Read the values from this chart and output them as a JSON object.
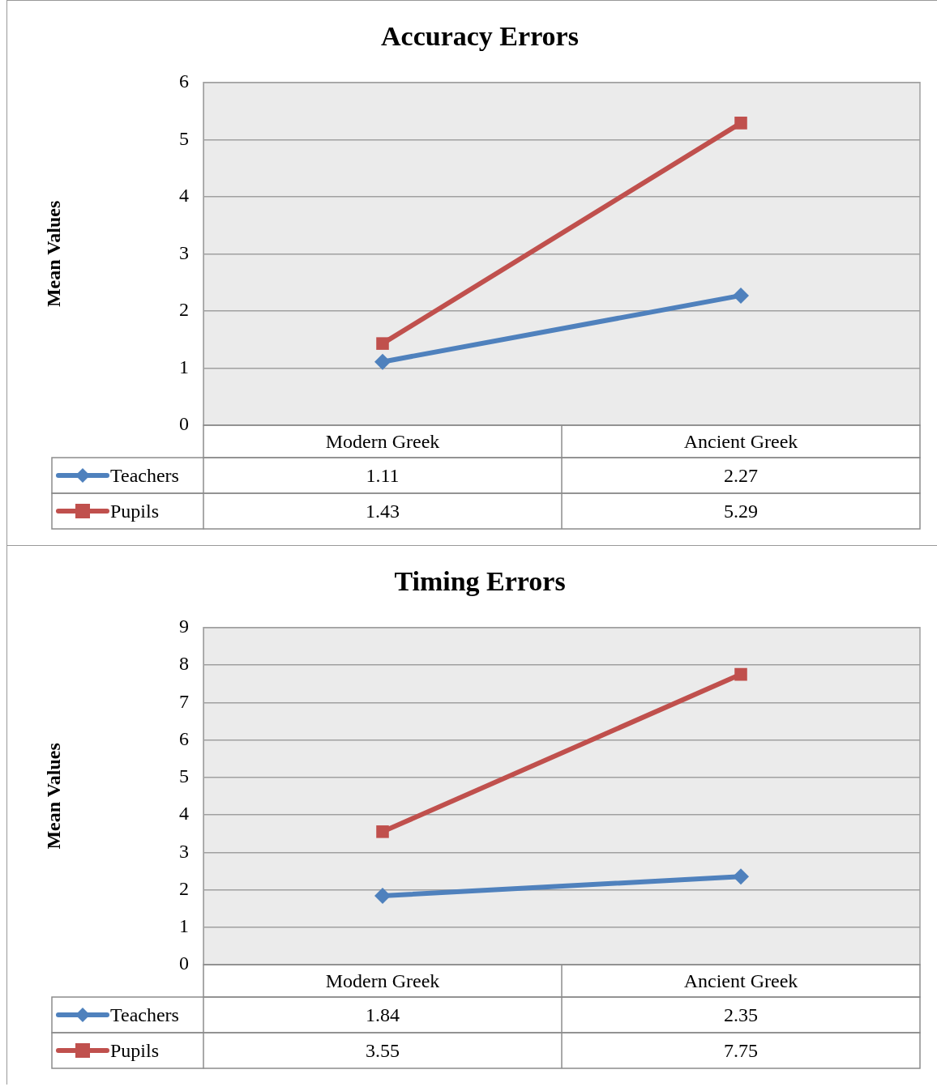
{
  "chart_data": [
    {
      "type": "line",
      "title": "Accuracy Errors",
      "ylabel": "Mean Values",
      "categories": [
        "Modern Greek",
        "Ancient Greek"
      ],
      "series": [
        {
          "name": "Teachers",
          "color": "#4f81bd",
          "marker": "diamond",
          "values": [
            1.11,
            2.27
          ]
        },
        {
          "name": "Pupils",
          "color": "#c0504d",
          "marker": "square",
          "values": [
            1.43,
            5.29
          ]
        }
      ],
      "ylim": [
        0,
        6
      ],
      "yticks": [
        0,
        1,
        2,
        3,
        4,
        5,
        6
      ],
      "grid": "y",
      "legend": "bottom",
      "data_labels": true,
      "line_style": "solid"
    },
    {
      "type": "line",
      "title": "Timing Errors",
      "ylabel": "Mean Values",
      "categories": [
        "Modern Greek",
        "Ancient Greek"
      ],
      "series": [
        {
          "name": "Teachers",
          "color": "#4f81bd",
          "marker": "diamond",
          "values": [
            1.84,
            2.35
          ]
        },
        {
          "name": "Pupils",
          "color": "#c0504d",
          "marker": "square",
          "values": [
            3.55,
            7.75
          ]
        }
      ],
      "ylim": [
        0,
        9
      ],
      "yticks": [
        0,
        1,
        2,
        3,
        4,
        5,
        6,
        7,
        8,
        9
      ],
      "grid": "y",
      "legend": "bottom",
      "data_labels": true,
      "line_style": "solid"
    }
  ]
}
